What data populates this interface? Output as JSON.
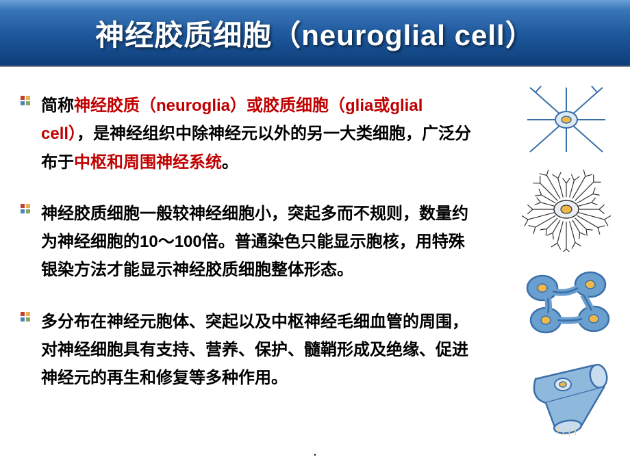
{
  "title": "神经胶质细胞（neuroglial cell）",
  "bullets": [
    {
      "parts": [
        {
          "text": "简称",
          "color": "#000000"
        },
        {
          "text": "神经胶质（neuroglia）或胶质细胞（glia或glial cell）",
          "color": "#c00000"
        },
        {
          "text": "，是神经组织中除神经元以外的另一大类细胞，广泛分布于",
          "color": "#000000"
        },
        {
          "text": "中枢和周围神经系统",
          "color": "#c00000"
        },
        {
          "text": "。",
          "color": "#000000"
        }
      ]
    },
    {
      "parts": [
        {
          "text": "神经胶质细胞一般较神经细胞小，突起多而不规则，数量约为神经细胞的10～100倍。普通染色只能显示胞核，用特殊银染方法才能显示神经胶质细胞整体形态。",
          "color": "#000000"
        }
      ]
    },
    {
      "parts": [
        {
          "text": "多分布在神经元胞体、突起以及中枢神经毛细血管的周围，对神经细胞具有支持、营养、保护、髓鞘形成及绝缘、促进神经元的再生和修复等多种作用。",
          "color": "#000000"
        }
      ]
    }
  ],
  "bullet_icon_colors": {
    "tl": "#c04030",
    "tr": "#e8b050",
    "bl": "#5080c0",
    "br": "#88a858"
  },
  "cells": [
    {
      "name": "astrocyte",
      "stroke": "#3a6fa8",
      "fill": "#f0b848",
      "type": "star"
    },
    {
      "name": "microglia",
      "stroke": "#333333",
      "fill": "#f0b848",
      "type": "spiky"
    },
    {
      "name": "oligodendrocyte",
      "stroke": "#3a6fa8",
      "fill": "#6aa0d0",
      "spot": "#f0b848",
      "type": "blob"
    },
    {
      "name": "schwann",
      "stroke": "#3a6fa8",
      "fill": "#8fb8dd",
      "spot": "#f0b848",
      "type": "cylinder"
    }
  ],
  "page_marker": "."
}
